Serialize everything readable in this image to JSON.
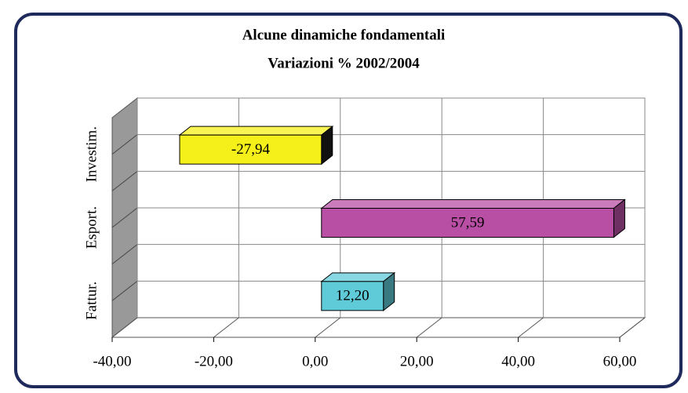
{
  "chart_data": {
    "type": "bar",
    "orientation": "horizontal",
    "title": "Alcune dinamiche fondamentali",
    "subtitle": "Variazioni % 2002/2004",
    "categories": [
      "Fattur.",
      "Esport.",
      "Investim."
    ],
    "values": [
      12.2,
      57.59,
      -27.94
    ],
    "value_labels": [
      "12,20",
      "57,59",
      "-27,94"
    ],
    "colors": [
      "#5fcbd8",
      "#b84fa5",
      "#f5f01a"
    ],
    "xlim": [
      -40,
      60
    ],
    "xticks": [
      {
        "value": -40,
        "label": "-40,00"
      },
      {
        "value": -20,
        "label": "-20,00"
      },
      {
        "value": 0,
        "label": "0,00"
      },
      {
        "value": 20,
        "label": "20,00"
      },
      {
        "value": 40,
        "label": "40,00"
      },
      {
        "value": 60,
        "label": "60,00"
      }
    ],
    "grid": true
  }
}
